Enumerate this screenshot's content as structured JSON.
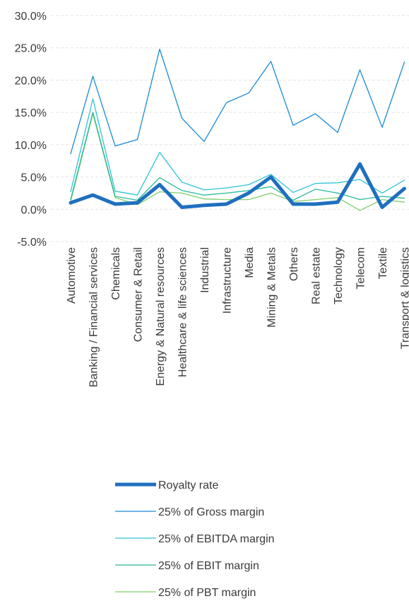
{
  "chart_data": {
    "type": "line",
    "categories": [
      "Automotive",
      "Banking / Financial services",
      "Chemicals",
      "Consumer & Retail",
      "Energy & Natural resources",
      "Healthcare & life sciences",
      "Industrial",
      "Infrastructure",
      "Media",
      "Mining & Metals",
      "Others",
      "Real estate",
      "Technology",
      "Telecom",
      "Textile",
      "Transport & logistics"
    ],
    "ylim": [
      -5.0,
      30.0
    ],
    "yticks": [
      -5.0,
      0.0,
      5.0,
      10.0,
      15.0,
      20.0,
      25.0,
      30.0
    ],
    "ytick_labels": [
      "-5.0%",
      "0.0%",
      "5.0%",
      "10.0%",
      "15.0%",
      "20.0%",
      "25.0%",
      "30.0%"
    ],
    "grid": "horizontal dashed",
    "legend_position": "bottom",
    "series": [
      {
        "name": "Royalty rate",
        "color": "#1f6fbf",
        "values": [
          1.0,
          2.2,
          0.8,
          1.0,
          3.8,
          0.3,
          0.6,
          0.8,
          2.5,
          5.0,
          0.8,
          0.8,
          1.1,
          7.0,
          0.3,
          3.2
        ]
      },
      {
        "name": "25% of Gross margin",
        "color": "#1a8ad6",
        "values": [
          8.6,
          20.6,
          9.8,
          10.8,
          24.8,
          14.1,
          10.5,
          16.5,
          18.0,
          22.9,
          13.0,
          14.8,
          11.9,
          21.6,
          12.7,
          22.8
        ]
      },
      {
        "name": "25% of EBITDA margin",
        "color": "#2ec4d8",
        "values": [
          2.7,
          17.1,
          2.8,
          2.2,
          8.8,
          4.2,
          3.0,
          3.3,
          3.8,
          5.4,
          2.6,
          4.0,
          4.1,
          4.6,
          2.5,
          4.5
        ]
      },
      {
        "name": "25% of EBIT margin",
        "color": "#2ab89a",
        "values": [
          1.5,
          15.0,
          2.0,
          1.4,
          4.9,
          2.9,
          2.2,
          2.5,
          2.9,
          3.5,
          1.4,
          3.1,
          2.5,
          1.5,
          2.0,
          1.7
        ]
      },
      {
        "name": "25% of PBT margin",
        "color": "#7fcf6a",
        "values": [
          1.2,
          14.8,
          1.8,
          0.7,
          2.7,
          2.5,
          1.6,
          1.5,
          1.5,
          2.5,
          1.2,
          1.5,
          1.8,
          -0.2,
          1.5,
          1.1
        ]
      }
    ]
  }
}
